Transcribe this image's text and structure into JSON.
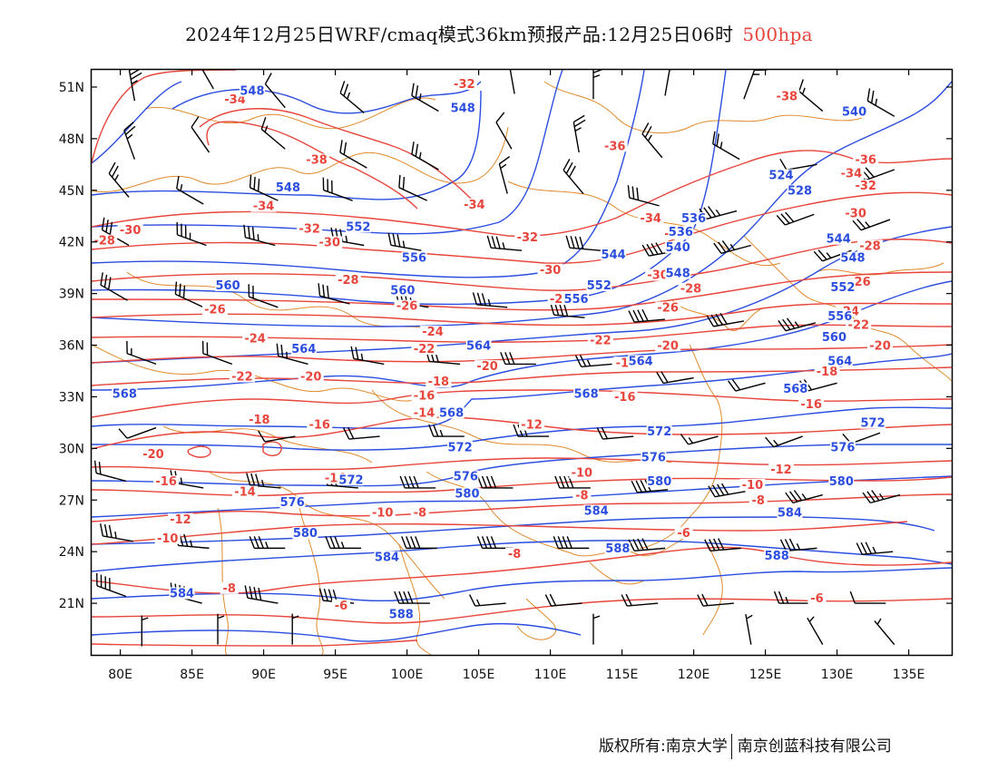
{
  "header": {
    "title": "2024年12月25日WRF/cmaq模式36km预报产品:12月25日06时",
    "level": "500hpa"
  },
  "footer": {
    "copyright": "版权所有:南京大学",
    "company": "南京创蓝科技有限公司"
  },
  "colors": {
    "temperature": "#e8453c",
    "height": "#2b4ee0",
    "coastline": "#e08a2c",
    "wind": "#000000",
    "level_text": "#e8453c"
  },
  "map": {
    "lon_range": [
      78,
      138
    ],
    "lat_range": [
      18,
      52
    ],
    "lon_ticks": [
      80,
      85,
      90,
      95,
      100,
      105,
      110,
      115,
      120,
      125,
      130,
      135
    ],
    "lat_ticks": [
      21,
      24,
      27,
      30,
      33,
      36,
      39,
      42,
      45,
      48,
      51
    ],
    "lon_tick_labels": [
      "80E",
      "85E",
      "90E",
      "95E",
      "100E",
      "105E",
      "110E",
      "115E",
      "120E",
      "125E",
      "130E",
      "135E"
    ],
    "lat_tick_labels": [
      "21N",
      "24N",
      "27N",
      "30N",
      "33N",
      "36N",
      "39N",
      "42N",
      "45N",
      "48N",
      "51N"
    ]
  },
  "temperature_labels": [
    {
      "text": "-34",
      "lon": 88,
      "lat": 50.1
    },
    {
      "text": "-32",
      "lon": 104,
      "lat": 51.0
    },
    {
      "text": "-38",
      "lon": 93.7,
      "lat": 46.6
    },
    {
      "text": "-34",
      "lon": 90,
      "lat": 43.9
    },
    {
      "text": "-34",
      "lon": 104.7,
      "lat": 44.0
    },
    {
      "text": "-36",
      "lon": 114.5,
      "lat": 47.4
    },
    {
      "text": "-38",
      "lon": 126.5,
      "lat": 50.3
    },
    {
      "text": "-34",
      "lon": 117,
      "lat": 43.2
    },
    {
      "text": "-32",
      "lon": 118.7,
      "lat": 42.3
    },
    {
      "text": "-34",
      "lon": 131,
      "lat": 45.8
    },
    {
      "text": "-36",
      "lon": 132,
      "lat": 46.6
    },
    {
      "text": "-32",
      "lon": 132,
      "lat": 45.1
    },
    {
      "text": "-30",
      "lon": 131.3,
      "lat": 43.5
    },
    {
      "text": "-28",
      "lon": 132.3,
      "lat": 41.6
    },
    {
      "text": "-26",
      "lon": 131.6,
      "lat": 39.5
    },
    {
      "text": "-24",
      "lon": 130.8,
      "lat": 37.8
    },
    {
      "text": "-22",
      "lon": 131.5,
      "lat": 37.0
    },
    {
      "text": "-20",
      "lon": 133,
      "lat": 35.8
    },
    {
      "text": "-18",
      "lon": 129.3,
      "lat": 34.3
    },
    {
      "text": "-16",
      "lon": 128.2,
      "lat": 32.4
    },
    {
      "text": "-30",
      "lon": 80.7,
      "lat": 42.5
    },
    {
      "text": "-28",
      "lon": 78.9,
      "lat": 41.9
    },
    {
      "text": "-32",
      "lon": 93.2,
      "lat": 42.6
    },
    {
      "text": "-30",
      "lon": 94.6,
      "lat": 41.8
    },
    {
      "text": "-32",
      "lon": 108.4,
      "lat": 42.1
    },
    {
      "text": "-30",
      "lon": 110,
      "lat": 40.2
    },
    {
      "text": "-28",
      "lon": 95.9,
      "lat": 39.6
    },
    {
      "text": "-28",
      "lon": 110.7,
      "lat": 38.5
    },
    {
      "text": "-30",
      "lon": 117.5,
      "lat": 39.9
    },
    {
      "text": "-28",
      "lon": 119.8,
      "lat": 39.1
    },
    {
      "text": "-26",
      "lon": 86.6,
      "lat": 37.9
    },
    {
      "text": "-26",
      "lon": 100,
      "lat": 38.1
    },
    {
      "text": "-26",
      "lon": 118.2,
      "lat": 38.0
    },
    {
      "text": "-24",
      "lon": 89.4,
      "lat": 36.2
    },
    {
      "text": "-24",
      "lon": 101.8,
      "lat": 36.6
    },
    {
      "text": "-22",
      "lon": 101.2,
      "lat": 35.6
    },
    {
      "text": "-22",
      "lon": 113.5,
      "lat": 36.1
    },
    {
      "text": "-20",
      "lon": 118.2,
      "lat": 35.8
    },
    {
      "text": "-22",
      "lon": 88.5,
      "lat": 34.0
    },
    {
      "text": "-20",
      "lon": 93.3,
      "lat": 34.0
    },
    {
      "text": "-20",
      "lon": 105.6,
      "lat": 34.6
    },
    {
      "text": "-18",
      "lon": 102.2,
      "lat": 33.7
    },
    {
      "text": "-18",
      "lon": 115.3,
      "lat": 34.8
    },
    {
      "text": "-16",
      "lon": 101.2,
      "lat": 32.9
    },
    {
      "text": "-16",
      "lon": 115.2,
      "lat": 32.8
    },
    {
      "text": "-14",
      "lon": 101.2,
      "lat": 31.9
    },
    {
      "text": "-18",
      "lon": 89.7,
      "lat": 31.5
    },
    {
      "text": "-16",
      "lon": 93.9,
      "lat": 31.2
    },
    {
      "text": "-12",
      "lon": 108.7,
      "lat": 31.2
    },
    {
      "text": "-20",
      "lon": 82.3,
      "lat": 29.5
    },
    {
      "text": "-16",
      "lon": 83.2,
      "lat": 27.9
    },
    {
      "text": "-14",
      "lon": 88.7,
      "lat": 27.3
    },
    {
      "text": "-14",
      "lon": 95,
      "lat": 28.1
    },
    {
      "text": "-10",
      "lon": 112.2,
      "lat": 28.4
    },
    {
      "text": "-12",
      "lon": 126.1,
      "lat": 28.6
    },
    {
      "text": "-10",
      "lon": 124.1,
      "lat": 27.7
    },
    {
      "text": "-10",
      "lon": 98.3,
      "lat": 26.1
    },
    {
      "text": "-8",
      "lon": 100.9,
      "lat": 26.1
    },
    {
      "text": "-8",
      "lon": 112.2,
      "lat": 27.1
    },
    {
      "text": "-8",
      "lon": 124.5,
      "lat": 26.8
    },
    {
      "text": "-12",
      "lon": 84.2,
      "lat": 25.7
    },
    {
      "text": "-10",
      "lon": 83.3,
      "lat": 24.6
    },
    {
      "text": "-8",
      "lon": 107.5,
      "lat": 23.7
    },
    {
      "text": "-6",
      "lon": 119.3,
      "lat": 24.9
    },
    {
      "text": "-8",
      "lon": 87.6,
      "lat": 21.7
    },
    {
      "text": "-6",
      "lon": 95.4,
      "lat": 20.7
    },
    {
      "text": "-6",
      "lon": 128.6,
      "lat": 21.1
    }
  ],
  "height_labels": [
    {
      "text": "548",
      "lon": 89.2,
      "lat": 50.6
    },
    {
      "text": "548",
      "lon": 103.9,
      "lat": 49.6
    },
    {
      "text": "540",
      "lon": 131.2,
      "lat": 49.4
    },
    {
      "text": "548",
      "lon": 91.7,
      "lat": 45.0
    },
    {
      "text": "524",
      "lon": 126.1,
      "lat": 45.7
    },
    {
      "text": "528",
      "lon": 127.4,
      "lat": 44.8
    },
    {
      "text": "552",
      "lon": 96.6,
      "lat": 42.7
    },
    {
      "text": "536",
      "lon": 120,
      "lat": 43.2
    },
    {
      "text": "536",
      "lon": 119.1,
      "lat": 42.4
    },
    {
      "text": "540",
      "lon": 118.9,
      "lat": 41.5
    },
    {
      "text": "544",
      "lon": 114.4,
      "lat": 41.1
    },
    {
      "text": "548",
      "lon": 118.9,
      "lat": 40.0
    },
    {
      "text": "544",
      "lon": 130.1,
      "lat": 42.0
    },
    {
      "text": "548",
      "lon": 131.1,
      "lat": 40.9
    },
    {
      "text": "556",
      "lon": 100.5,
      "lat": 40.9
    },
    {
      "text": "560",
      "lon": 87.5,
      "lat": 39.3
    },
    {
      "text": "560",
      "lon": 99.7,
      "lat": 39.0
    },
    {
      "text": "552",
      "lon": 113.4,
      "lat": 39.3
    },
    {
      "text": "556",
      "lon": 111.8,
      "lat": 38.5
    },
    {
      "text": "552",
      "lon": 130.4,
      "lat": 39.2
    },
    {
      "text": "556",
      "lon": 130.2,
      "lat": 37.5
    },
    {
      "text": "560",
      "lon": 129.8,
      "lat": 36.3
    },
    {
      "text": "564",
      "lon": 92.8,
      "lat": 35.6
    },
    {
      "text": "564",
      "lon": 105,
      "lat": 35.8
    },
    {
      "text": "564",
      "lon": 116.3,
      "lat": 34.9
    },
    {
      "text": "564",
      "lon": 130.2,
      "lat": 34.9
    },
    {
      "text": "568",
      "lon": 80.3,
      "lat": 33.0
    },
    {
      "text": "568",
      "lon": 112.5,
      "lat": 33.0
    },
    {
      "text": "568",
      "lon": 127.1,
      "lat": 33.3
    },
    {
      "text": "572",
      "lon": 132.5,
      "lat": 31.3
    },
    {
      "text": "568",
      "lon": 103.1,
      "lat": 31.9
    },
    {
      "text": "572",
      "lon": 117.6,
      "lat": 30.8
    },
    {
      "text": "572",
      "lon": 103.7,
      "lat": 29.9
    },
    {
      "text": "576",
      "lon": 117.2,
      "lat": 29.3
    },
    {
      "text": "576",
      "lon": 130.4,
      "lat": 29.9
    },
    {
      "text": "576",
      "lon": 104.1,
      "lat": 28.2
    },
    {
      "text": "580",
      "lon": 117.6,
      "lat": 27.9
    },
    {
      "text": "580",
      "lon": 130.3,
      "lat": 27.9
    },
    {
      "text": "580",
      "lon": 104.2,
      "lat": 27.2
    },
    {
      "text": "572",
      "lon": 96.1,
      "lat": 28.0
    },
    {
      "text": "576",
      "lon": 92,
      "lat": 26.7
    },
    {
      "text": "584",
      "lon": 113.2,
      "lat": 26.2
    },
    {
      "text": "584",
      "lon": 126.7,
      "lat": 26.1
    },
    {
      "text": "580",
      "lon": 92.9,
      "lat": 24.9
    },
    {
      "text": "584",
      "lon": 98.6,
      "lat": 23.5
    },
    {
      "text": "588",
      "lon": 114.7,
      "lat": 24.0
    },
    {
      "text": "588",
      "lon": 125.8,
      "lat": 23.6
    },
    {
      "text": "584",
      "lon": 84.3,
      "lat": 21.4
    },
    {
      "text": "588",
      "lon": 99.6,
      "lat": 20.2
    }
  ],
  "wind_barbs": [
    {
      "lon": 80.6,
      "lat": 41.8,
      "dir": 300,
      "speed": 30
    },
    {
      "lon": 86,
      "lat": 41.8,
      "dir": 290,
      "speed": 35
    },
    {
      "lon": 90.8,
      "lat": 41.8,
      "dir": 285,
      "speed": 35
    },
    {
      "lon": 97,
      "lat": 41.8,
      "dir": 280,
      "speed": 35
    },
    {
      "lon": 101,
      "lat": 41.5,
      "dir": 280,
      "speed": 35
    },
    {
      "lon": 108,
      "lat": 41.5,
      "dir": 275,
      "speed": 35
    },
    {
      "lon": 113.5,
      "lat": 41.5,
      "dir": 275,
      "speed": 40
    },
    {
      "lon": 119,
      "lat": 41.5,
      "dir": 260,
      "speed": 40
    },
    {
      "lon": 124,
      "lat": 41.8,
      "dir": 255,
      "speed": 35
    },
    {
      "lon": 131,
      "lat": 41.5,
      "dir": 250,
      "speed": 25
    },
    {
      "lon": 80.5,
      "lat": 38.6,
      "dir": 300,
      "speed": 30
    },
    {
      "lon": 85.8,
      "lat": 38.2,
      "dir": 295,
      "speed": 30
    },
    {
      "lon": 91,
      "lat": 38.2,
      "dir": 290,
      "speed": 20
    },
    {
      "lon": 96,
      "lat": 38.4,
      "dir": 285,
      "speed": 30
    },
    {
      "lon": 101.5,
      "lat": 38.2,
      "dir": 280,
      "speed": 35
    },
    {
      "lon": 107,
      "lat": 38.2,
      "dir": 275,
      "speed": 35
    },
    {
      "lon": 112.4,
      "lat": 37.6,
      "dir": 275,
      "speed": 40
    },
    {
      "lon": 118,
      "lat": 37.5,
      "dir": 265,
      "speed": 40
    },
    {
      "lon": 123.5,
      "lat": 37.4,
      "dir": 260,
      "speed": 40
    },
    {
      "lon": 128.5,
      "lat": 37.3,
      "dir": 255,
      "speed": 35
    },
    {
      "lon": 82.5,
      "lat": 34.9,
      "dir": 290,
      "speed": 15
    },
    {
      "lon": 87.8,
      "lat": 34.9,
      "dir": 290,
      "speed": 20
    },
    {
      "lon": 93.1,
      "lat": 34.9,
      "dir": 285,
      "speed": 25
    },
    {
      "lon": 98.4,
      "lat": 34.9,
      "dir": 280,
      "speed": 25
    },
    {
      "lon": 103.7,
      "lat": 34.9,
      "dir": 275,
      "speed": 30
    },
    {
      "lon": 109,
      "lat": 34.9,
      "dir": 270,
      "speed": 30
    },
    {
      "lon": 114.3,
      "lat": 34.9,
      "dir": 265,
      "speed": 25
    },
    {
      "lon": 120,
      "lat": 34.1,
      "dir": 260,
      "speed": 20
    },
    {
      "lon": 125,
      "lat": 33.8,
      "dir": 255,
      "speed": 20
    },
    {
      "lon": 130,
      "lat": 33.8,
      "dir": 255,
      "speed": 20
    },
    {
      "lon": 82.5,
      "lat": 31.2,
      "dir": 250,
      "speed": 10
    },
    {
      "lon": 92.2,
      "lat": 30.7,
      "dir": 260,
      "speed": 10
    },
    {
      "lon": 98.1,
      "lat": 30.7,
      "dir": 265,
      "speed": 20
    },
    {
      "lon": 104,
      "lat": 30.7,
      "dir": 270,
      "speed": 25
    },
    {
      "lon": 109.9,
      "lat": 30.7,
      "dir": 270,
      "speed": 25
    },
    {
      "lon": 115.8,
      "lat": 30.7,
      "dir": 265,
      "speed": 20
    },
    {
      "lon": 121.7,
      "lat": 30.7,
      "dir": 255,
      "speed": 15
    },
    {
      "lon": 127.6,
      "lat": 30.7,
      "dir": 250,
      "speed": 15
    },
    {
      "lon": 133,
      "lat": 30.9,
      "dir": 250,
      "speed": 10
    },
    {
      "lon": 80.4,
      "lat": 28.1,
      "dir": 285,
      "speed": 20
    },
    {
      "lon": 85.8,
      "lat": 27.7,
      "dir": 280,
      "speed": 25
    },
    {
      "lon": 91.2,
      "lat": 27.7,
      "dir": 275,
      "speed": 35
    },
    {
      "lon": 96.6,
      "lat": 27.7,
      "dir": 275,
      "speed": 40
    },
    {
      "lon": 102,
      "lat": 27.7,
      "dir": 270,
      "speed": 40
    },
    {
      "lon": 107.4,
      "lat": 27.7,
      "dir": 270,
      "speed": 40
    },
    {
      "lon": 112.8,
      "lat": 27.7,
      "dir": 270,
      "speed": 40
    },
    {
      "lon": 118.2,
      "lat": 27.6,
      "dir": 265,
      "speed": 40
    },
    {
      "lon": 123.6,
      "lat": 27.5,
      "dir": 260,
      "speed": 40
    },
    {
      "lon": 129,
      "lat": 27.3,
      "dir": 255,
      "speed": 35
    },
    {
      "lon": 134.4,
      "lat": 27.3,
      "dir": 255,
      "speed": 35
    },
    {
      "lon": 80.9,
      "lat": 24.6,
      "dir": 280,
      "speed": 35
    },
    {
      "lon": 86.2,
      "lat": 24.2,
      "dir": 275,
      "speed": 35
    },
    {
      "lon": 91.5,
      "lat": 24.2,
      "dir": 270,
      "speed": 35
    },
    {
      "lon": 96.8,
      "lat": 24.2,
      "dir": 270,
      "speed": 35
    },
    {
      "lon": 102.1,
      "lat": 24.2,
      "dir": 270,
      "speed": 40
    },
    {
      "lon": 107.4,
      "lat": 24.2,
      "dir": 270,
      "speed": 40
    },
    {
      "lon": 112.7,
      "lat": 24.2,
      "dir": 270,
      "speed": 40
    },
    {
      "lon": 118,
      "lat": 24.2,
      "dir": 265,
      "speed": 40
    },
    {
      "lon": 123.3,
      "lat": 24.2,
      "dir": 265,
      "speed": 40
    },
    {
      "lon": 128.6,
      "lat": 24.2,
      "dir": 265,
      "speed": 35
    },
    {
      "lon": 133.9,
      "lat": 24.0,
      "dir": 265,
      "speed": 35
    },
    {
      "lon": 80.4,
      "lat": 21.4,
      "dir": 290,
      "speed": 40
    },
    {
      "lon": 85.7,
      "lat": 21.0,
      "dir": 285,
      "speed": 40
    },
    {
      "lon": 91,
      "lat": 21.0,
      "dir": 280,
      "speed": 40
    },
    {
      "lon": 96.3,
      "lat": 21.0,
      "dir": 275,
      "speed": 40
    },
    {
      "lon": 101.6,
      "lat": 21.0,
      "dir": 270,
      "speed": 40
    },
    {
      "lon": 106.9,
      "lat": 21.0,
      "dir": 265,
      "speed": 15
    },
    {
      "lon": 112.2,
      "lat": 21.0,
      "dir": 265,
      "speed": 20
    },
    {
      "lon": 117.5,
      "lat": 21.0,
      "dir": 265,
      "speed": 20
    },
    {
      "lon": 122.8,
      "lat": 21.0,
      "dir": 265,
      "speed": 20
    },
    {
      "lon": 128.1,
      "lat": 21.0,
      "dir": 270,
      "speed": 25
    },
    {
      "lon": 133.4,
      "lat": 21.0,
      "dir": 270,
      "speed": 10
    },
    {
      "lon": 81,
      "lat": 50.2,
      "dir": 350,
      "speed": 35
    },
    {
      "lon": 86.5,
      "lat": 50.9,
      "dir": 330,
      "speed": 25
    },
    {
      "lon": 91.5,
      "lat": 49.8,
      "dir": 320,
      "speed": 10
    },
    {
      "lon": 97,
      "lat": 49.5,
      "dir": 310,
      "speed": 25
    },
    {
      "lon": 102.2,
      "lat": 49.6,
      "dir": 300,
      "speed": 25
    },
    {
      "lon": 107.5,
      "lat": 50.6,
      "dir": 350,
      "speed": 10
    },
    {
      "lon": 113,
      "lat": 50.3,
      "dir": 0,
      "speed": 25
    },
    {
      "lon": 118,
      "lat": 50.5,
      "dir": 10,
      "speed": 15
    },
    {
      "lon": 123.5,
      "lat": 50.3,
      "dir": 20,
      "speed": 15
    },
    {
      "lon": 129,
      "lat": 49.6,
      "dir": 310,
      "speed": 15
    },
    {
      "lon": 134,
      "lat": 49.3,
      "dir": 300,
      "speed": 25
    },
    {
      "lon": 81,
      "lat": 46.8,
      "dir": 340,
      "speed": 25
    },
    {
      "lon": 86.2,
      "lat": 47.2,
      "dir": 325,
      "speed": 10
    },
    {
      "lon": 91.5,
      "lat": 47.4,
      "dir": 310,
      "speed": 15
    },
    {
      "lon": 97.2,
      "lat": 46.3,
      "dir": 300,
      "speed": 20
    },
    {
      "lon": 102.2,
      "lat": 46.2,
      "dir": 300,
      "speed": 25
    },
    {
      "lon": 107.3,
      "lat": 47.4,
      "dir": 330,
      "speed": 10
    },
    {
      "lon": 112,
      "lat": 47.2,
      "dir": 350,
      "speed": 25
    },
    {
      "lon": 117.8,
      "lat": 46.9,
      "dir": 320,
      "speed": 25
    },
    {
      "lon": 123.2,
      "lat": 46.8,
      "dir": 300,
      "speed": 25
    },
    {
      "lon": 128.6,
      "lat": 46.5,
      "dir": 260,
      "speed": 10
    },
    {
      "lon": 134,
      "lat": 46.2,
      "dir": 250,
      "speed": 30
    },
    {
      "lon": 80.6,
      "lat": 44.6,
      "dir": 320,
      "speed": 25
    },
    {
      "lon": 85.8,
      "lat": 44.2,
      "dir": 300,
      "speed": 15
    },
    {
      "lon": 91,
      "lat": 44.4,
      "dir": 295,
      "speed": 30
    },
    {
      "lon": 96.2,
      "lat": 44.4,
      "dir": 290,
      "speed": 30
    },
    {
      "lon": 101.4,
      "lat": 44.4,
      "dir": 295,
      "speed": 20
    },
    {
      "lon": 107,
      "lat": 44.8,
      "dir": 345,
      "speed": 15
    },
    {
      "lon": 112.3,
      "lat": 44.8,
      "dir": 320,
      "speed": 30
    },
    {
      "lon": 117.6,
      "lat": 44.1,
      "dir": 285,
      "speed": 30
    },
    {
      "lon": 123,
      "lat": 43.8,
      "dir": 255,
      "speed": 35
    },
    {
      "lon": 128.4,
      "lat": 43.6,
      "dir": 250,
      "speed": 30
    },
    {
      "lon": 133.7,
      "lat": 43.3,
      "dir": 250,
      "speed": 25
    },
    {
      "lon": 81.5,
      "lat": 18.5,
      "dir": 0,
      "speed": 5
    },
    {
      "lon": 86.8,
      "lat": 18.6,
      "dir": 0,
      "speed": 5
    },
    {
      "lon": 92,
      "lat": 18.6,
      "dir": 0,
      "speed": 5
    },
    {
      "lon": 113,
      "lat": 18.6,
      "dir": 0,
      "speed": 5
    },
    {
      "lon": 124,
      "lat": 18.6,
      "dir": 350,
      "speed": 5
    },
    {
      "lon": 129,
      "lat": 18.6,
      "dir": 330,
      "speed": 5
    },
    {
      "lon": 134,
      "lat": 18.6,
      "dir": 320,
      "speed": 5
    }
  ]
}
